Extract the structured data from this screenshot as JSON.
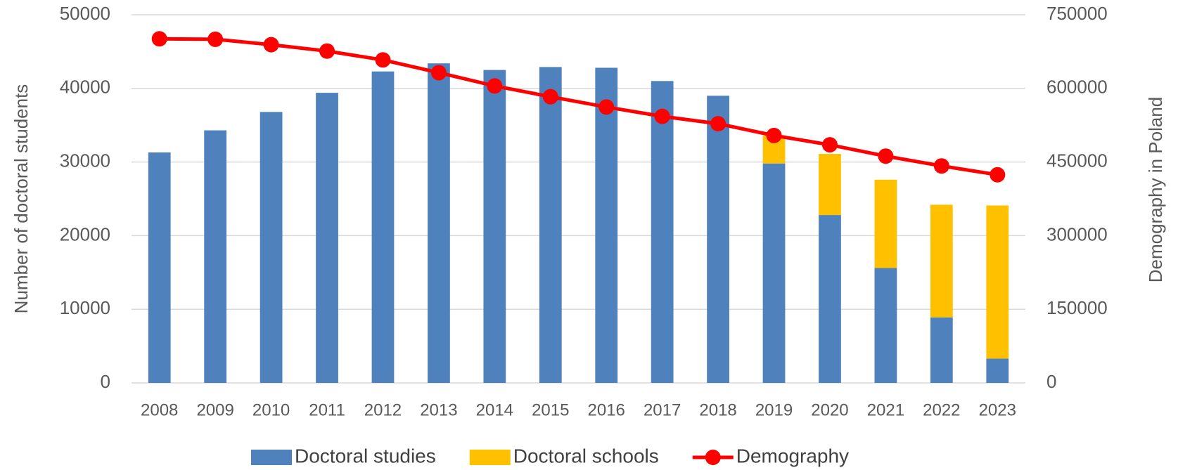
{
  "chart_data": {
    "type": "bar",
    "categories": [
      "2008",
      "2009",
      "2010",
      "2011",
      "2012",
      "2013",
      "2014",
      "2015",
      "2016",
      "2017",
      "2018",
      "2019",
      "2020",
      "2021",
      "2022",
      "2023"
    ],
    "y_label": "Number of doctoral students",
    "y2_label": "Demography in Poland",
    "stacked": true,
    "series": [
      {
        "name": "Doctoral studies",
        "color": "#4f81bd",
        "type": "bar",
        "values": [
          31300,
          34300,
          36800,
          39400,
          42300,
          43400,
          42500,
          42900,
          42800,
          41000,
          39000,
          29800,
          22800,
          15600,
          8900,
          3300
        ]
      },
      {
        "name": "Doctoral schools",
        "color": "#ffc000",
        "type": "bar",
        "values": [
          null,
          null,
          null,
          null,
          null,
          null,
          null,
          null,
          null,
          null,
          null,
          3800,
          8300,
          12000,
          15300,
          20800
        ]
      },
      {
        "name": "Demography",
        "color": "#ff0000",
        "type": "line",
        "axis": "y2",
        "values": [
          701000,
          700000,
          689000,
          676000,
          658000,
          632000,
          605000,
          583000,
          562000,
          543000,
          528000,
          504000,
          485000,
          462000,
          442000,
          424000
        ]
      }
    ],
    "ylim": [
      0,
      50000
    ],
    "yticks": [
      0,
      10000,
      20000,
      30000,
      40000,
      50000
    ],
    "y2lim": [
      0,
      750000
    ],
    "y2ticks": [
      0,
      150000,
      300000,
      450000,
      600000,
      750000
    ],
    "grid": true,
    "legend": "bottom"
  }
}
